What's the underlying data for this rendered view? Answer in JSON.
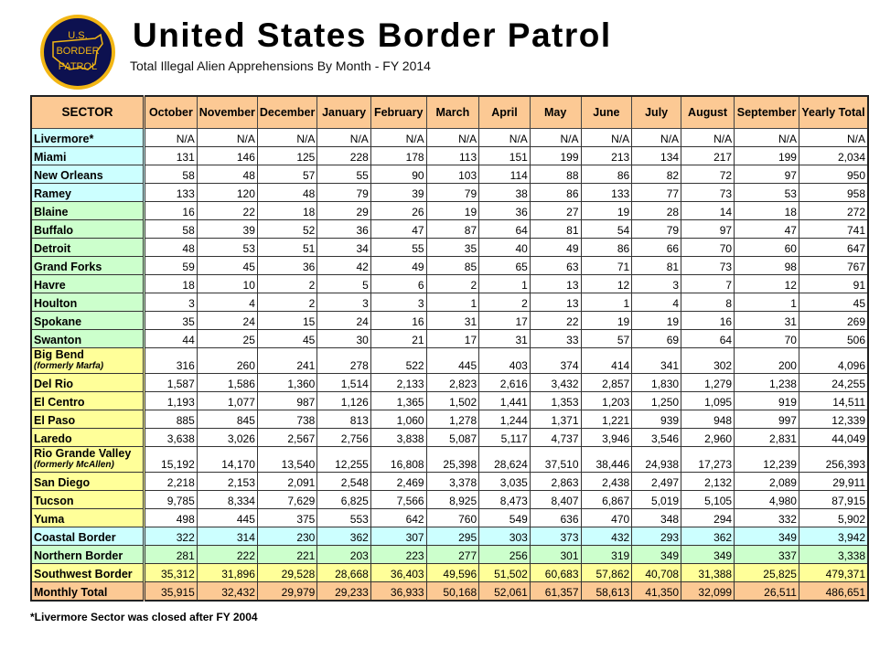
{
  "header": {
    "logo_text": [
      "U.S.",
      "BORDER",
      "PATROL"
    ],
    "title": "United States Border Patrol",
    "subtitle": "Total Illegal Alien Apprehensions By Month - FY 2014"
  },
  "colors": {
    "header": "#fcc994",
    "coastal": "#ccffff",
    "northern": "#ccffcc",
    "southwest": "#ffff99",
    "total": "#fcc994"
  },
  "table": {
    "columns": [
      "SECTOR",
      "October",
      "November",
      "December",
      "January",
      "February",
      "March",
      "April",
      "May",
      "June",
      "July",
      "August",
      "September",
      "Yearly Total"
    ],
    "rows": [
      {
        "sector": "Livermore*",
        "group": "cyan",
        "values": [
          "N/A",
          "N/A",
          "N/A",
          "N/A",
          "N/A",
          "N/A",
          "N/A",
          "N/A",
          "N/A",
          "N/A",
          "N/A",
          "N/A",
          "N/A"
        ]
      },
      {
        "sector": "Miami",
        "group": "cyan",
        "values": [
          "131",
          "146",
          "125",
          "228",
          "178",
          "113",
          "151",
          "199",
          "213",
          "134",
          "217",
          "199",
          "2,034"
        ]
      },
      {
        "sector": "New Orleans",
        "group": "cyan",
        "values": [
          "58",
          "48",
          "57",
          "55",
          "90",
          "103",
          "114",
          "88",
          "86",
          "82",
          "72",
          "97",
          "950"
        ]
      },
      {
        "sector": "Ramey",
        "group": "cyan",
        "values": [
          "133",
          "120",
          "48",
          "79",
          "39",
          "79",
          "38",
          "86",
          "133",
          "77",
          "73",
          "53",
          "958"
        ]
      },
      {
        "sector": "Blaine",
        "group": "green",
        "values": [
          "16",
          "22",
          "18",
          "29",
          "26",
          "19",
          "36",
          "27",
          "19",
          "28",
          "14",
          "18",
          "272"
        ]
      },
      {
        "sector": "Buffalo",
        "group": "green",
        "values": [
          "58",
          "39",
          "52",
          "36",
          "47",
          "87",
          "64",
          "81",
          "54",
          "79",
          "97",
          "47",
          "741"
        ]
      },
      {
        "sector": "Detroit",
        "group": "green",
        "values": [
          "48",
          "53",
          "51",
          "34",
          "55",
          "35",
          "40",
          "49",
          "86",
          "66",
          "70",
          "60",
          "647"
        ]
      },
      {
        "sector": "Grand Forks",
        "group": "green",
        "values": [
          "59",
          "45",
          "36",
          "42",
          "49",
          "85",
          "65",
          "63",
          "71",
          "81",
          "73",
          "98",
          "767"
        ]
      },
      {
        "sector": "Havre",
        "group": "green",
        "values": [
          "18",
          "10",
          "2",
          "5",
          "6",
          "2",
          "1",
          "13",
          "12",
          "3",
          "7",
          "12",
          "91"
        ]
      },
      {
        "sector": "Houlton",
        "group": "green",
        "values": [
          "3",
          "4",
          "2",
          "3",
          "3",
          "1",
          "2",
          "13",
          "1",
          "4",
          "8",
          "1",
          "45"
        ]
      },
      {
        "sector": "Spokane",
        "group": "green",
        "values": [
          "35",
          "24",
          "15",
          "24",
          "16",
          "31",
          "17",
          "22",
          "19",
          "19",
          "16",
          "31",
          "269"
        ]
      },
      {
        "sector": "Swanton",
        "group": "green",
        "values": [
          "44",
          "25",
          "45",
          "30",
          "21",
          "17",
          "31",
          "33",
          "57",
          "69",
          "64",
          "70",
          "506"
        ]
      },
      {
        "sector": "Big Bend",
        "subtitle": "(formerly Marfa)",
        "group": "yellow",
        "values": [
          "316",
          "260",
          "241",
          "278",
          "522",
          "445",
          "403",
          "374",
          "414",
          "341",
          "302",
          "200",
          "4,096"
        ]
      },
      {
        "sector": "Del Rio",
        "group": "yellow",
        "values": [
          "1,587",
          "1,586",
          "1,360",
          "1,514",
          "2,133",
          "2,823",
          "2,616",
          "3,432",
          "2,857",
          "1,830",
          "1,279",
          "1,238",
          "24,255"
        ]
      },
      {
        "sector": "El Centro",
        "group": "yellow",
        "values": [
          "1,193",
          "1,077",
          "987",
          "1,126",
          "1,365",
          "1,502",
          "1,441",
          "1,353",
          "1,203",
          "1,250",
          "1,095",
          "919",
          "14,511"
        ]
      },
      {
        "sector": "El Paso",
        "group": "yellow",
        "values": [
          "885",
          "845",
          "738",
          "813",
          "1,060",
          "1,278",
          "1,244",
          "1,371",
          "1,221",
          "939",
          "948",
          "997",
          "12,339"
        ]
      },
      {
        "sector": "Laredo",
        "group": "yellow",
        "values": [
          "3,638",
          "3,026",
          "2,567",
          "2,756",
          "3,838",
          "5,087",
          "5,117",
          "4,737",
          "3,946",
          "3,546",
          "2,960",
          "2,831",
          "44,049"
        ]
      },
      {
        "sector": "Rio Grande Valley",
        "subtitle": "(formerly McAllen)",
        "group": "yellow",
        "values": [
          "15,192",
          "14,170",
          "13,540",
          "12,255",
          "16,808",
          "25,398",
          "28,624",
          "37,510",
          "38,446",
          "24,938",
          "17,273",
          "12,239",
          "256,393"
        ]
      },
      {
        "sector": "San Diego",
        "group": "yellow",
        "values": [
          "2,218",
          "2,153",
          "2,091",
          "2,548",
          "2,469",
          "3,378",
          "3,035",
          "2,863",
          "2,438",
          "2,497",
          "2,132",
          "2,089",
          "29,911"
        ]
      },
      {
        "sector": "Tucson",
        "group": "yellow",
        "values": [
          "9,785",
          "8,334",
          "7,629",
          "6,825",
          "7,566",
          "8,925",
          "8,473",
          "8,407",
          "6,867",
          "5,019",
          "5,105",
          "4,980",
          "87,915"
        ]
      },
      {
        "sector": "Yuma",
        "group": "yellow",
        "values": [
          "498",
          "445",
          "375",
          "553",
          "642",
          "760",
          "549",
          "636",
          "470",
          "348",
          "294",
          "332",
          "5,902"
        ]
      },
      {
        "sector": "Coastal Border",
        "group": "sum-cyan",
        "values": [
          "322",
          "314",
          "230",
          "362",
          "307",
          "295",
          "303",
          "373",
          "432",
          "293",
          "362",
          "349",
          "3,942"
        ]
      },
      {
        "sector": "Northern Border",
        "group": "sum-green",
        "values": [
          "281",
          "222",
          "221",
          "203",
          "223",
          "277",
          "256",
          "301",
          "319",
          "349",
          "349",
          "337",
          "3,338"
        ]
      },
      {
        "sector": "Southwest Border",
        "group": "sum-yellow",
        "values": [
          "35,312",
          "31,896",
          "29,528",
          "28,668",
          "36,403",
          "49,596",
          "51,502",
          "60,683",
          "57,862",
          "40,708",
          "31,388",
          "25,825",
          "479,371"
        ]
      },
      {
        "sector": "Monthly Total",
        "group": "sum-orange",
        "values": [
          "35,915",
          "32,432",
          "29,979",
          "29,233",
          "36,933",
          "50,168",
          "52,061",
          "61,357",
          "58,613",
          "41,350",
          "32,099",
          "26,511",
          "486,651"
        ]
      }
    ]
  },
  "footnote": "*Livermore Sector was closed after FY 2004"
}
